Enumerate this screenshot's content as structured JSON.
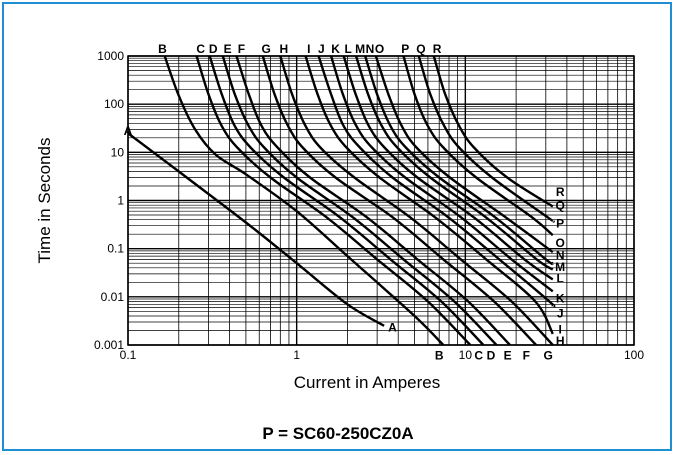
{
  "chart_data": {
    "type": "line",
    "xlabel": "Current in Amperes",
    "ylabel": "Time in Seconds",
    "x_scale": "log",
    "y_scale": "log",
    "xlim": [
      0.1,
      100
    ],
    "ylim": [
      0.001,
      1000
    ],
    "grid": true,
    "x_ticks": [
      "0.1",
      "1",
      "10",
      "100"
    ],
    "y_ticks": [
      "0.001",
      "0.01",
      "0.1",
      "1",
      "10",
      "100",
      "1000"
    ],
    "series": [
      {
        "name": "A",
        "points": [
          [
            0.1,
            25
          ],
          [
            0.2,
            4
          ],
          [
            0.5,
            0.35
          ],
          [
            1,
            0.05
          ],
          [
            2,
            0.007
          ],
          [
            3.3,
            0.0025
          ]
        ]
      },
      {
        "name": "B",
        "points": [
          [
            0.165,
            1000
          ],
          [
            0.2,
            150
          ],
          [
            0.25,
            30
          ],
          [
            0.33,
            9
          ],
          [
            0.5,
            3.5
          ],
          [
            1,
            0.6
          ],
          [
            2,
            0.07
          ],
          [
            5,
            0.004
          ],
          [
            7.4,
            0.001
          ]
        ]
      },
      {
        "name": "C",
        "points": [
          [
            0.255,
            1000
          ],
          [
            0.3,
            160
          ],
          [
            0.36,
            35
          ],
          [
            0.45,
            12
          ],
          [
            0.7,
            3
          ],
          [
            1.5,
            0.45
          ],
          [
            3,
            0.06
          ],
          [
            6,
            0.008
          ],
          [
            10.7,
            0.001
          ]
        ]
      },
      {
        "name": "D",
        "points": [
          [
            0.305,
            1000
          ],
          [
            0.36,
            160
          ],
          [
            0.43,
            35
          ],
          [
            0.54,
            12
          ],
          [
            0.84,
            3
          ],
          [
            1.8,
            0.45
          ],
          [
            3.6,
            0.06
          ],
          [
            7.2,
            0.008
          ],
          [
            12.8,
            0.001
          ]
        ]
      },
      {
        "name": "E",
        "points": [
          [
            0.365,
            1000
          ],
          [
            0.43,
            160
          ],
          [
            0.52,
            35
          ],
          [
            0.65,
            12
          ],
          [
            1.0,
            3
          ],
          [
            2.15,
            0.45
          ],
          [
            4.3,
            0.06
          ],
          [
            8.6,
            0.008
          ],
          [
            15.3,
            0.001
          ]
        ]
      },
      {
        "name": "F",
        "points": [
          [
            0.44,
            1000
          ],
          [
            0.52,
            160
          ],
          [
            0.62,
            35
          ],
          [
            0.78,
            12
          ],
          [
            1.2,
            3
          ],
          [
            2.6,
            0.45
          ],
          [
            5.2,
            0.06
          ],
          [
            10.4,
            0.008
          ],
          [
            18.4,
            0.001
          ]
        ]
      },
      {
        "name": "G",
        "points": [
          [
            0.63,
            1000
          ],
          [
            0.74,
            160
          ],
          [
            0.89,
            35
          ],
          [
            1.1,
            12
          ],
          [
            1.7,
            3
          ],
          [
            3.7,
            0.45
          ],
          [
            7.4,
            0.06
          ],
          [
            14.8,
            0.008
          ],
          [
            26.3,
            0.001
          ]
        ]
      },
      {
        "name": "H",
        "points": [
          [
            0.8,
            1000
          ],
          [
            0.94,
            160
          ],
          [
            1.13,
            35
          ],
          [
            1.4,
            12
          ],
          [
            2.2,
            3
          ],
          [
            4.7,
            0.45
          ],
          [
            9.4,
            0.06
          ],
          [
            18.8,
            0.008
          ],
          [
            33,
            0.001
          ]
        ]
      },
      {
        "name": "I",
        "points": [
          [
            1.13,
            1000
          ],
          [
            1.33,
            160
          ],
          [
            1.6,
            35
          ],
          [
            2.0,
            12
          ],
          [
            3.1,
            3
          ],
          [
            6.6,
            0.45
          ],
          [
            13.3,
            0.06
          ],
          [
            26,
            0.008
          ],
          [
            33,
            0.0017
          ]
        ]
      },
      {
        "name": "J",
        "points": [
          [
            1.35,
            1000
          ],
          [
            1.6,
            160
          ],
          [
            1.9,
            35
          ],
          [
            2.4,
            12
          ],
          [
            3.7,
            3
          ],
          [
            7.9,
            0.45
          ],
          [
            15.9,
            0.06
          ],
          [
            31.5,
            0.008
          ],
          [
            33,
            0.0065
          ]
        ]
      },
      {
        "name": "K",
        "points": [
          [
            1.6,
            1000
          ],
          [
            1.88,
            160
          ],
          [
            2.26,
            35
          ],
          [
            2.83,
            12
          ],
          [
            4.4,
            3
          ],
          [
            9.4,
            0.45
          ],
          [
            18.8,
            0.06
          ],
          [
            33,
            0.013
          ]
        ]
      },
      {
        "name": "L",
        "points": [
          [
            1.9,
            1000
          ],
          [
            2.24,
            160
          ],
          [
            2.68,
            35
          ],
          [
            3.36,
            12
          ],
          [
            5.2,
            3
          ],
          [
            11.2,
            0.45
          ],
          [
            22.4,
            0.06
          ],
          [
            33,
            0.023
          ]
        ]
      },
      {
        "name": "M",
        "points": [
          [
            2.25,
            1000
          ],
          [
            2.65,
            160
          ],
          [
            3.2,
            35
          ],
          [
            4,
            12
          ],
          [
            6.2,
            3
          ],
          [
            13.2,
            0.45
          ],
          [
            26.5,
            0.06
          ],
          [
            33,
            0.037
          ]
        ]
      },
      {
        "name": "N",
        "points": [
          [
            2.55,
            1000
          ],
          [
            3.0,
            160
          ],
          [
            3.6,
            35
          ],
          [
            4.5,
            12
          ],
          [
            7,
            3
          ],
          [
            15,
            0.45
          ],
          [
            30,
            0.06
          ],
          [
            33,
            0.05
          ]
        ]
      },
      {
        "name": "O",
        "points": [
          [
            2.95,
            1000
          ],
          [
            3.5,
            160
          ],
          [
            4.2,
            35
          ],
          [
            5.2,
            12
          ],
          [
            8.1,
            3
          ],
          [
            17.3,
            0.45
          ],
          [
            33,
            0.085
          ]
        ]
      },
      {
        "name": "P",
        "points": [
          [
            4.3,
            1000
          ],
          [
            5.0,
            160
          ],
          [
            6.0,
            35
          ],
          [
            7.5,
            12
          ],
          [
            11.6,
            3
          ],
          [
            24.8,
            0.45
          ],
          [
            33,
            0.19
          ]
        ]
      },
      {
        "name": "Q",
        "points": [
          [
            5.3,
            1000
          ],
          [
            6.2,
            160
          ],
          [
            7.5,
            35
          ],
          [
            9.3,
            12
          ],
          [
            14.4,
            3
          ],
          [
            30.7,
            0.45
          ],
          [
            33,
            0.38
          ]
        ]
      },
      {
        "name": "R",
        "points": [
          [
            6.5,
            1000
          ],
          [
            7.6,
            160
          ],
          [
            9.2,
            35
          ],
          [
            11.4,
            12
          ],
          [
            17.7,
            3
          ],
          [
            33,
            0.75
          ]
        ]
      }
    ],
    "curve_labels": [
      {
        "text": "A",
        "x": 0.1,
        "y": 28
      },
      {
        "text": "B",
        "x": 0.16,
        "y": 1000
      },
      {
        "text": "C",
        "x": 0.27,
        "y": 1000
      },
      {
        "text": "D",
        "x": 0.32,
        "y": 1000
      },
      {
        "text": "E",
        "x": 0.39,
        "y": 1000
      },
      {
        "text": "F",
        "x": 0.47,
        "y": 1000
      },
      {
        "text": "G",
        "x": 0.66,
        "y": 1000
      },
      {
        "text": "H",
        "x": 0.84,
        "y": 1000
      },
      {
        "text": "I",
        "x": 1.18,
        "y": 1000
      },
      {
        "text": "J",
        "x": 1.4,
        "y": 1000
      },
      {
        "text": "K",
        "x": 1.7,
        "y": 1000
      },
      {
        "text": "L",
        "x": 2.02,
        "y": 1000
      },
      {
        "text": "M",
        "x": 2.38,
        "y": 1000
      },
      {
        "text": "N",
        "x": 2.72,
        "y": 1000
      },
      {
        "text": "O",
        "x": 3.1,
        "y": 1000
      },
      {
        "text": "P",
        "x": 4.4,
        "y": 1000
      },
      {
        "text": "Q",
        "x": 5.45,
        "y": 1000
      },
      {
        "text": "R",
        "x": 6.8,
        "y": 1000
      },
      {
        "text": "A",
        "x": 3.7,
        "y": 0.0023
      },
      {
        "text": "B",
        "x": 7.0,
        "y": 0.0006
      },
      {
        "text": "C",
        "x": 12.0,
        "y": 0.0006
      },
      {
        "text": "D",
        "x": 14.2,
        "y": 0.0006
      },
      {
        "text": "E",
        "x": 17.8,
        "y": 0.0006
      },
      {
        "text": "F",
        "x": 23.0,
        "y": 0.0006
      },
      {
        "text": "G",
        "x": 31.0,
        "y": 0.0006
      },
      {
        "text": "H",
        "x": 36.5,
        "y": 0.0012
      },
      {
        "text": "I",
        "x": 36.5,
        "y": 0.0021
      },
      {
        "text": "J",
        "x": 36.5,
        "y": 0.0045
      },
      {
        "text": "K",
        "x": 36.5,
        "y": 0.0092
      },
      {
        "text": "L",
        "x": 36.5,
        "y": 0.024
      },
      {
        "text": "M",
        "x": 36.5,
        "y": 0.042
      },
      {
        "text": "N",
        "x": 36.5,
        "y": 0.072
      },
      {
        "text": "O",
        "x": 36.5,
        "y": 0.13
      },
      {
        "text": "P",
        "x": 36.5,
        "y": 0.33
      },
      {
        "text": "Q",
        "x": 36.5,
        "y": 0.78
      },
      {
        "text": "R",
        "x": 36.5,
        "y": 1.5
      }
    ]
  },
  "part_number": "P = SC60-250CZ0A",
  "colors": {
    "border": "#1e8fd2",
    "grid": "#000000",
    "curve": "#000000"
  }
}
